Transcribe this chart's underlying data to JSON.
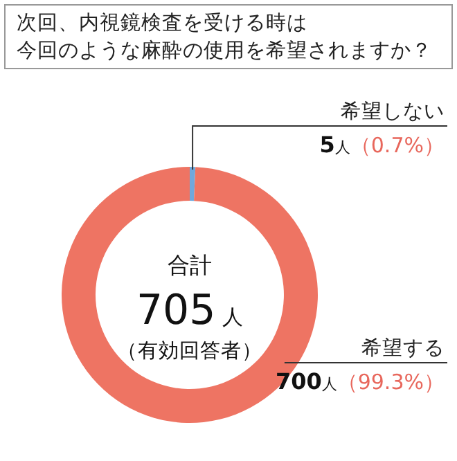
{
  "chart_data": {
    "type": "donut",
    "title": "次回、内視鏡検査を受ける時は",
    "subtitle": "今回のような麻酔の使用を希望されますか？",
    "categories": [
      "希望しない",
      "希望する"
    ],
    "values": [
      5,
      700
    ],
    "colors": [
      "#6fa8dc",
      "#ee7463"
    ],
    "value_labels": [
      "5人（0.7%）",
      "700人（99.3%）"
    ],
    "annotations": [
      "合計",
      "705人",
      "（有効回答者）"
    ]
  }
}
